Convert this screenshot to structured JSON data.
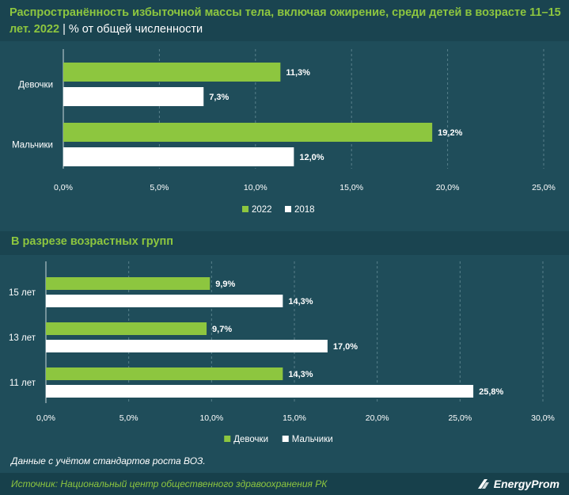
{
  "header": {
    "title": "Распространённость избыточной массы тела, включая ожирение, среди детей в возрасте 11–15 лет. 2022",
    "separator": "|",
    "unit": "% от общей численности"
  },
  "section2": {
    "title": "В разрезе возрастных групп"
  },
  "footer": {
    "note": "Данные с учётом стандартов роста ВОЗ.",
    "source": "Источник: Национальный центр общественного здравоохранения РК",
    "logo_text": "EnergyProm"
  },
  "colors": {
    "green": "#8dc63f",
    "white": "#ffffff",
    "background": "#1f4d5a"
  },
  "chart_data": [
    {
      "type": "bar",
      "orientation": "horizontal",
      "categories": [
        "Девочки",
        "Мальчики"
      ],
      "series": [
        {
          "name": "2022",
          "values": [
            11.3,
            19.2
          ],
          "labels": [
            "11,3%",
            "19,2%"
          ],
          "color": "#8dc63f"
        },
        {
          "name": "2018",
          "values": [
            7.3,
            12.0
          ],
          "labels": [
            "7,3%",
            "12,0%"
          ],
          "color": "#ffffff"
        }
      ],
      "xlim": [
        0,
        25
      ],
      "ticks": [
        0,
        5,
        10,
        15,
        20,
        25
      ],
      "tick_labels": [
        "0,0%",
        "5,0%",
        "10,0%",
        "15,0%",
        "20,0%",
        "25,0%"
      ],
      "grid": true,
      "legend": "bottom-center"
    },
    {
      "type": "bar",
      "orientation": "horizontal",
      "categories": [
        "15 лет",
        "13 лет",
        "11 лет"
      ],
      "series": [
        {
          "name": "Девочки",
          "values": [
            9.9,
            9.7,
            14.3
          ],
          "labels": [
            "9,9%",
            "9,7%",
            "14,3%"
          ],
          "color": "#8dc63f"
        },
        {
          "name": "Мальчики",
          "values": [
            14.3,
            17.0,
            25.8
          ],
          "labels": [
            "14,3%",
            "17,0%",
            "25,8%"
          ],
          "color": "#ffffff"
        }
      ],
      "xlim": [
        0,
        30
      ],
      "ticks": [
        0,
        5,
        10,
        15,
        20,
        25,
        30
      ],
      "tick_labels": [
        "0,0%",
        "5,0%",
        "10,0%",
        "15,0%",
        "20,0%",
        "25,0%",
        "30,0%"
      ],
      "grid": true,
      "legend": "bottom-center"
    }
  ]
}
